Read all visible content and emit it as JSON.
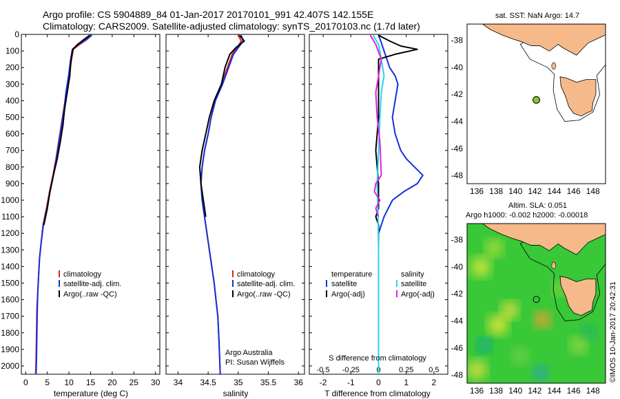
{
  "header": {
    "line1": "Argo profile: CS 5904889_84 01-Jan-2017 20170101_991 42.407S 142.155E",
    "line2": "Climatology: CARS2009. Satellite-adjusted climatology: synTS_20170103.nc (1.7d later)"
  },
  "credit": "©IMOS 10-Jan-2017 20:42:31",
  "colors": {
    "climatology": "#e02020",
    "satellite": "#1030e0",
    "argo": "#000000",
    "s_satellite": "#20d8e8",
    "s_argo": "#e020e0",
    "land": "#f5b98a"
  },
  "chart_data": [
    {
      "type": "line",
      "xlabel": "temperature (deg C)",
      "ylabel": "",
      "xlim": [
        -1,
        31
      ],
      "ylim": [
        2050,
        0
      ],
      "xticks": [
        0,
        5,
        10,
        15,
        20,
        25,
        30
      ],
      "yticks": [
        0,
        100,
        200,
        300,
        400,
        500,
        600,
        700,
        800,
        900,
        1000,
        1100,
        1200,
        1300,
        1400,
        1500,
        1600,
        1700,
        1800,
        1900,
        2000
      ],
      "legend": [
        "climatology",
        "satellite-adj. clim.",
        "Argo(..raw -QC)"
      ],
      "series": [
        {
          "name": "climatology",
          "color": "#e02020",
          "x": [
            15.2,
            14.2,
            12.5,
            11.0,
            10.6,
            10.0,
            9.4,
            8.8,
            8.2,
            7.6,
            7.0,
            6.3,
            5.5,
            4.8,
            4.0,
            3.6,
            3.2,
            3.0,
            2.8,
            2.6,
            2.5,
            2.4,
            2.3
          ],
          "y": [
            5,
            30,
            60,
            90,
            150,
            250,
            350,
            450,
            550,
            650,
            750,
            850,
            950,
            1050,
            1150,
            1250,
            1350,
            1450,
            1550,
            1650,
            1800,
            1950,
            2050
          ]
        },
        {
          "name": "satellite-adj. clim.",
          "color": "#1030e0",
          "x": [
            15.3,
            14.0,
            12.2,
            10.8,
            10.4,
            9.9,
            9.3,
            8.9,
            8.3,
            7.7,
            7.1,
            6.4,
            5.6,
            4.9,
            4.1,
            3.6,
            3.2,
            3.0,
            2.8,
            2.7,
            2.6,
            2.5,
            2.4
          ],
          "y": [
            5,
            30,
            60,
            90,
            150,
            250,
            350,
            450,
            550,
            650,
            750,
            850,
            950,
            1050,
            1150,
            1250,
            1350,
            1450,
            1550,
            1650,
            1800,
            1950,
            2050
          ]
        },
        {
          "name": "Argo(..raw -QC)",
          "color": "#000000",
          "x": [
            14.8,
            13.5,
            12.0,
            10.9,
            10.5,
            10.2,
            9.6,
            9.0,
            8.6,
            8.0,
            7.3,
            6.4,
            5.6,
            5.0,
            4.2
          ],
          "y": [
            5,
            30,
            60,
            90,
            150,
            250,
            350,
            450,
            550,
            650,
            750,
            850,
            950,
            1050,
            1150
          ]
        }
      ]
    },
    {
      "type": "line",
      "xlabel": "salinity",
      "ylabel": "",
      "xlim": [
        33.8,
        36.1
      ],
      "ylim": [
        2050,
        0
      ],
      "xticks": [
        34,
        34.5,
        35,
        35.5,
        36
      ],
      "legend": [
        "climatology",
        "satellite-adj. clim.",
        "Argo(..raw -QC)"
      ],
      "annotation": [
        "Argo Australia",
        "PI: Susan Wijffels"
      ],
      "series": [
        {
          "name": "climatology",
          "color": "#e02020",
          "x": [
            35.0,
            35.05,
            34.98,
            34.9,
            34.82,
            34.72,
            34.62,
            34.55,
            34.5,
            34.44,
            34.4,
            34.38,
            34.4,
            34.44,
            34.48,
            34.52,
            34.56,
            34.6,
            34.63,
            34.66,
            34.68,
            34.7
          ],
          "y": [
            5,
            40,
            80,
            120,
            200,
            300,
            400,
            500,
            600,
            700,
            800,
            900,
            1000,
            1100,
            1200,
            1300,
            1400,
            1500,
            1600,
            1700,
            1850,
            2050
          ]
        },
        {
          "name": "satellite-adj. clim.",
          "color": "#1030e0",
          "x": [
            35.05,
            35.08,
            35.0,
            34.92,
            34.84,
            34.74,
            34.62,
            34.55,
            34.5,
            34.44,
            34.4,
            34.38,
            34.4,
            34.44,
            34.48,
            34.52,
            34.56,
            34.6,
            34.63,
            34.66,
            34.68,
            34.7
          ],
          "y": [
            5,
            40,
            80,
            120,
            200,
            300,
            400,
            500,
            600,
            700,
            800,
            900,
            1000,
            1100,
            1200,
            1300,
            1400,
            1500,
            1600,
            1700,
            1850,
            2050
          ]
        },
        {
          "name": "Argo(..raw -QC)",
          "color": "#000000",
          "x": [
            35.02,
            35.1,
            34.96,
            34.86,
            34.78,
            34.72,
            34.6,
            34.52,
            34.46,
            34.4,
            34.36,
            34.38,
            34.42,
            34.46
          ],
          "y": [
            5,
            40,
            80,
            120,
            200,
            300,
            400,
            500,
            600,
            700,
            800,
            900,
            1000,
            1100
          ]
        }
      ]
    },
    {
      "type": "line",
      "xlabel": "T difference from climatology",
      "xlabel_top": "S difference from climatology",
      "xlim": [
        -2.5,
        2.5
      ],
      "ylim": [
        2050,
        0
      ],
      "xticks": [
        -2,
        -1,
        0,
        1,
        2
      ],
      "xticks_s": [
        "-0.5",
        "-0.25",
        "0",
        "0.25",
        "0.5"
      ],
      "legend_left": [
        "temperature",
        "satellite",
        "Argo(-adj)"
      ],
      "legend_right": [
        "salinity",
        "satellite",
        "Argo(-adj)"
      ],
      "series": [
        {
          "name": "satellite",
          "color": "#1030e0",
          "x": [
            0,
            0.1,
            0.2,
            0.4,
            0.6,
            0.7,
            0.6,
            0.5,
            0.6,
            0.8,
            1.0,
            1.3,
            1.6,
            1.4,
            0.9,
            0.5,
            0.2,
            0.0,
            0,
            0,
            0
          ],
          "y": [
            5,
            50,
            100,
            200,
            250,
            300,
            400,
            500,
            600,
            700,
            750,
            800,
            850,
            900,
            950,
            1000,
            1100,
            1200,
            1500,
            1800,
            2050
          ]
        },
        {
          "name": "Argo(-adj)",
          "color": "#000000",
          "x": [
            0,
            0.4,
            0.8,
            1.4,
            0.6,
            0,
            0,
            0,
            -0.1,
            0,
            0,
            0,
            -0.1,
            0,
            0
          ],
          "y": [
            5,
            40,
            70,
            90,
            120,
            150,
            300,
            500,
            700,
            900,
            1000,
            1050,
            1100,
            1150,
            1200
          ]
        },
        {
          "name": "salinity satellite",
          "color": "#20d8e8",
          "x": [
            -0.2,
            0,
            0.1,
            0.2,
            0.1,
            0.05,
            0,
            -0.05,
            -0.02,
            0,
            0,
            0,
            0,
            0
          ],
          "y": [
            5,
            60,
            150,
            250,
            350,
            500,
            700,
            900,
            1100,
            1300,
            1500,
            1700,
            1900,
            2050
          ]
        },
        {
          "name": "salinity Argo(-adj)",
          "color": "#e020e0",
          "x": [
            -0.3,
            -0.1,
            0.1,
            0,
            -0.1,
            -0.05,
            0.05,
            0.1,
            -0.1,
            -0.15,
            0.05,
            -0.1,
            0
          ],
          "y": [
            5,
            60,
            150,
            250,
            350,
            500,
            650,
            850,
            900,
            950,
            1000,
            1050,
            1100
          ]
        }
      ]
    },
    {
      "type": "map",
      "title": "sat. SST: NaN Argo: 14.7",
      "xticks": [
        "136",
        "138",
        "140",
        "142",
        "144",
        "146",
        "148"
      ],
      "yticks": [
        "-38",
        "-40",
        "-42",
        "-44",
        "-46",
        "-48"
      ],
      "xlim": [
        135,
        149.3
      ],
      "ylim": [
        -48.6,
        -36.8
      ],
      "float_position": {
        "lon": 142.155,
        "lat": -42.407
      }
    },
    {
      "type": "heatmap",
      "title_line1": "Altim. SLA: 0.051",
      "title_line2": "Argo h1000: -0.002 h2000: -0.00018",
      "xticks": [
        "136",
        "138",
        "140",
        "142",
        "144",
        "146",
        "148"
      ],
      "yticks": [
        "-38",
        "-40",
        "-42",
        "-44",
        "-46",
        "-48"
      ],
      "xlim": [
        135,
        149.3
      ],
      "ylim": [
        -48.6,
        -36.8
      ],
      "float_position": {
        "lon": 142.155,
        "lat": -42.407
      }
    }
  ]
}
